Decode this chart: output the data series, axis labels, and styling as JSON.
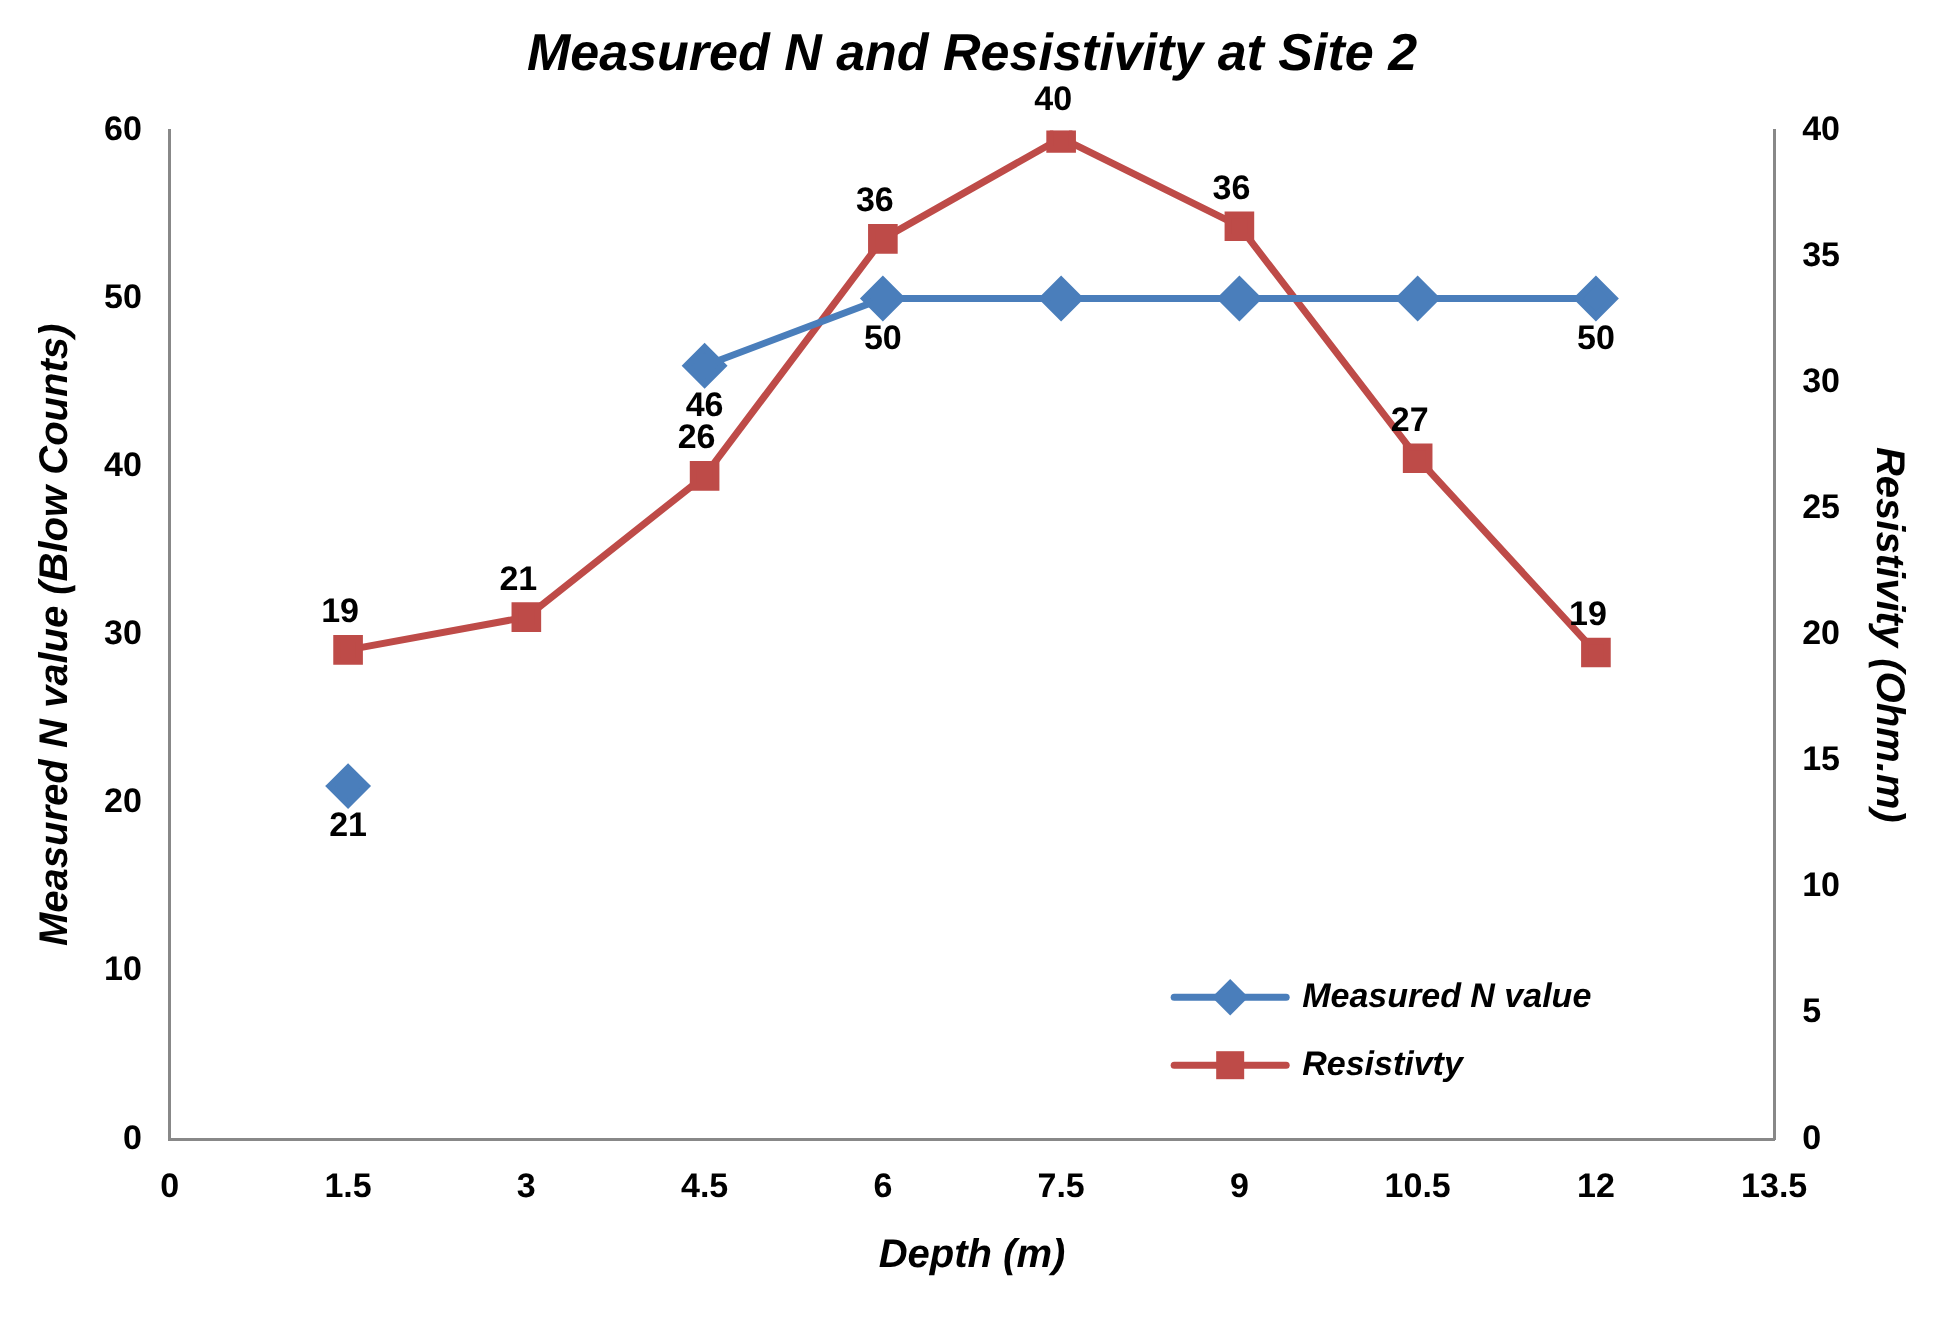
{
  "chart_data": {
    "type": "line",
    "title": "Measured N and Resistivity at Site 2",
    "xlabel": "Depth (m)",
    "ylabel": "Measured N value (Blow Counts)",
    "y2label": "Resistivity (Ohm.m)",
    "x": [
      1.5,
      3,
      4.5,
      6,
      7.5,
      9,
      10.5,
      12
    ],
    "series": [
      {
        "name": "Measured N value",
        "color": "#4a7ebb",
        "marker": "diamond",
        "values": [
          21,
          null,
          46,
          50,
          50,
          50,
          50,
          50
        ],
        "value_labels": [
          "21",
          null,
          "46",
          "50",
          null,
          null,
          null,
          "50"
        ]
      },
      {
        "name": "Resistivty",
        "color": "#be4b48",
        "marker": "square",
        "axis": "y2",
        "values": [
          19.4,
          20.7,
          26.3,
          35.7,
          39.7,
          36.2,
          27,
          19.3
        ],
        "value_labels": [
          "19",
          "21",
          "26",
          "36",
          "40",
          "36",
          "27",
          "19"
        ]
      }
    ],
    "xlim": [
      0,
      13.5
    ],
    "xticks": [
      0,
      1.5,
      3,
      4.5,
      6,
      7.5,
      9,
      10.5,
      12,
      13.5
    ],
    "ylim": [
      0,
      60
    ],
    "yticks": [
      0,
      10,
      20,
      30,
      40,
      50,
      60
    ],
    "y2lim": [
      0,
      40
    ],
    "y2ticks": [
      0,
      5,
      10,
      15,
      20,
      25,
      30,
      35,
      40
    ],
    "grid": false,
    "legend": "bottom right"
  }
}
